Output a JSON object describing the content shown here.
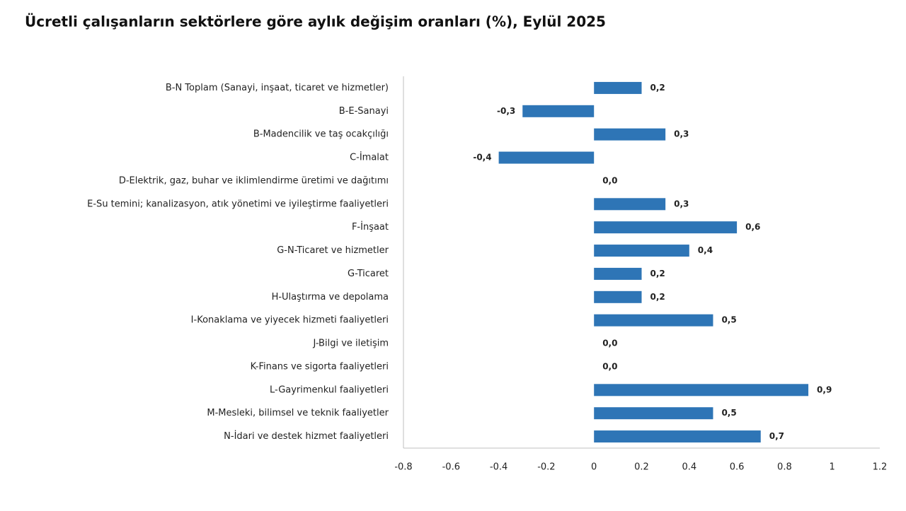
{
  "chart_data": {
    "type": "barh",
    "title": "Ücretli çalışanların sektörlere göre aylık değişim oranları (%), Eylül 2025",
    "categories": [
      "B-N Toplam (Sanayi, inşaat, ticaret ve hizmetler)",
      "B-E-Sanayi",
      "B-Madencilik ve taş ocakçılığı",
      "C-İmalat",
      "D-Elektrik, gaz, buhar ve iklimlendirme üretimi ve dağıtımı",
      "E-Su temini; kanalizasyon, atık yönetimi ve iyileştirme faaliyetleri",
      "F-İnşaat",
      "G-N-Ticaret ve hizmetler",
      "G-Ticaret",
      "H-Ulaştırma ve depolama",
      "I-Konaklama ve yiyecek hizmeti faaliyetleri",
      "J-Bilgi ve iletişim",
      "K-Finans ve sigorta faaliyetleri",
      "L-Gayrimenkul faaliyetleri",
      "M-Mesleki, bilimsel ve teknik faaliyetler",
      "N-İdari ve destek hizmet faaliyetleri"
    ],
    "values": [
      0.2,
      -0.3,
      0.3,
      -0.4,
      0.0,
      0.3,
      0.6,
      0.4,
      0.2,
      0.2,
      0.5,
      0.0,
      0.0,
      0.9,
      0.5,
      0.7
    ],
    "value_labels": [
      "0,2",
      "-0,3",
      "0,3",
      "-0,4",
      "0,0",
      "0,3",
      "0,6",
      "0,4",
      "0,2",
      "0,2",
      "0,5",
      "0,0",
      "0,0",
      "0,9",
      "0,5",
      "0,7"
    ],
    "color": "#2e75b6",
    "xlim": [
      -0.8,
      1.2
    ],
    "xticks": [
      -0.8,
      -0.6,
      -0.4,
      -0.2,
      0,
      0.2,
      0.4,
      0.6,
      0.8,
      1,
      1.2
    ],
    "grid": false
  }
}
